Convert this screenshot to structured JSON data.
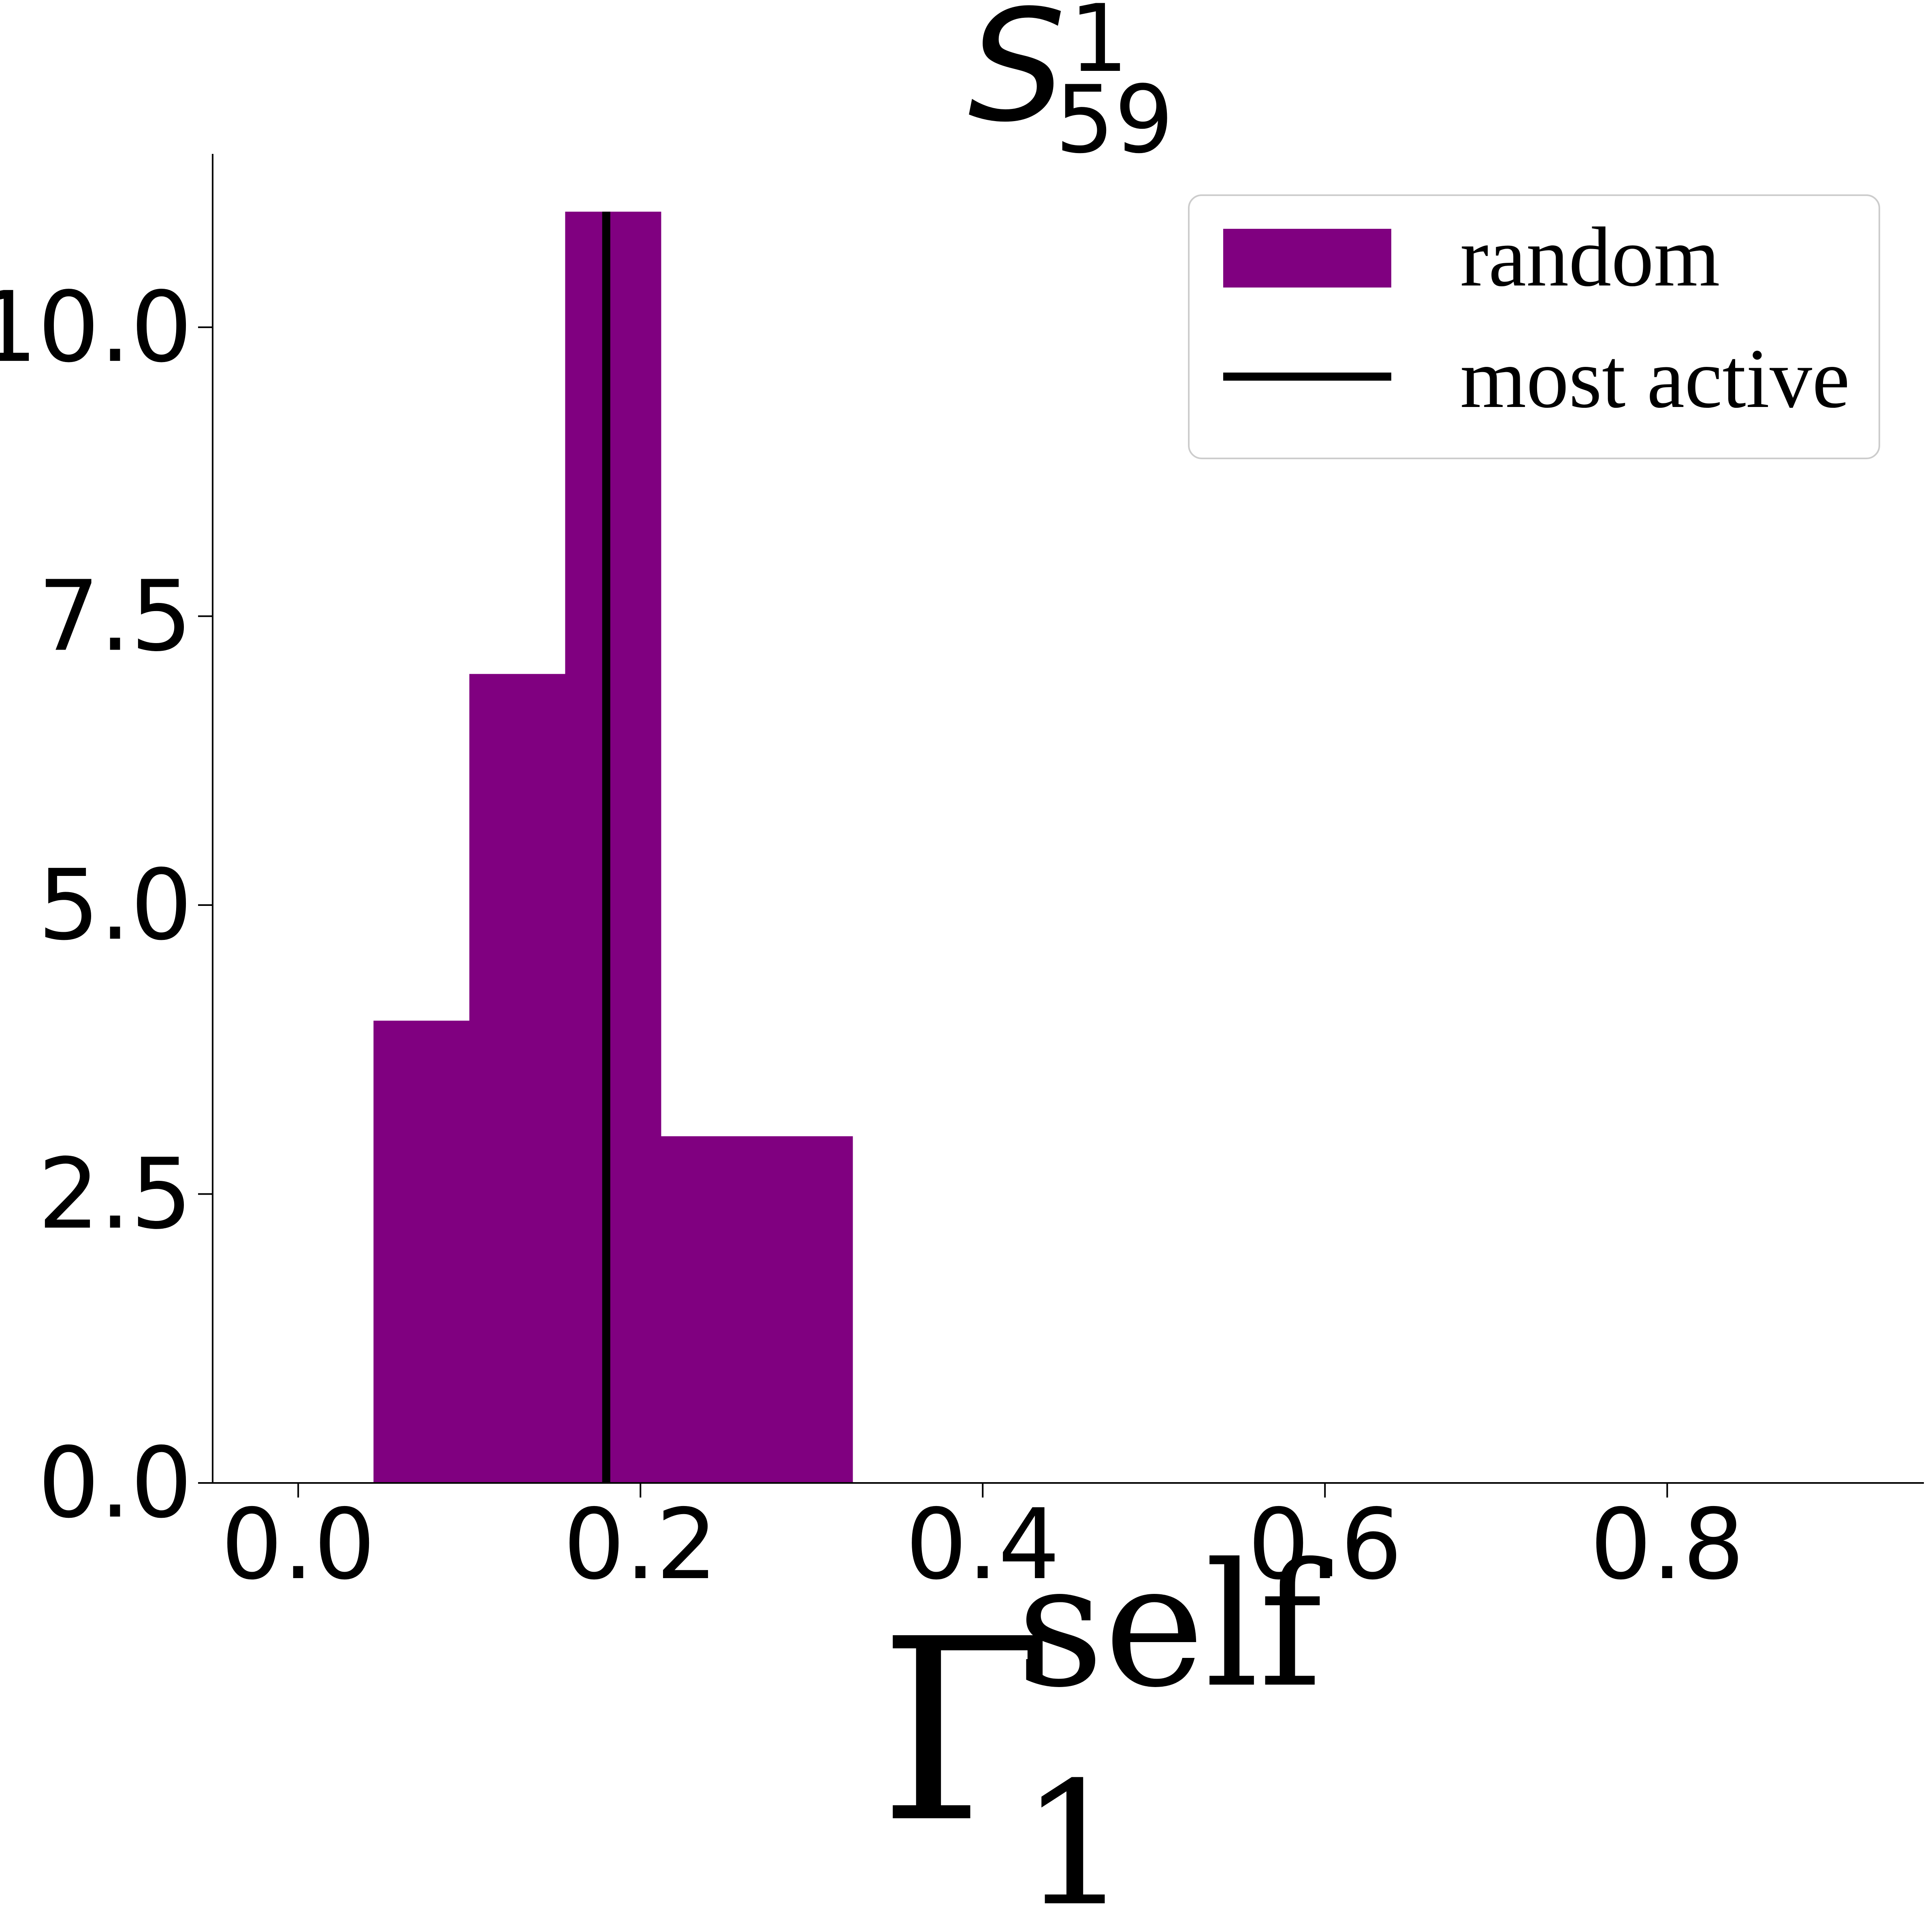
{
  "chart_data": {
    "type": "histogram",
    "title": {
      "base": "S",
      "superscript": "1",
      "subscript": "59"
    },
    "xlabel": {
      "base": "Γ",
      "superscript": "self",
      "subscript": "1"
    },
    "ylabel": "",
    "xlim": [
      -0.05,
      0.95
    ],
    "ylim": [
      0,
      11.5
    ],
    "xticks": [
      0.0,
      0.2,
      0.4,
      0.6,
      0.8
    ],
    "xtick_labels": [
      "0.0",
      "0.2",
      "0.4",
      "0.6",
      "0.8"
    ],
    "yticks": [
      0.0,
      2.5,
      5.0,
      7.5,
      10.0
    ],
    "ytick_labels": [
      "0.0",
      "2.5",
      "5.0",
      "7.5",
      "10.0"
    ],
    "bins": [
      {
        "x0": 0.044,
        "x1": 0.1,
        "count": 4
      },
      {
        "x0": 0.1,
        "x1": 0.156,
        "count": 7
      },
      {
        "x0": 0.156,
        "x1": 0.212,
        "count": 11
      },
      {
        "x0": 0.212,
        "x1": 0.268,
        "count": 3
      },
      {
        "x0": 0.268,
        "x1": 0.324,
        "count": 3
      }
    ],
    "vline": {
      "x": 0.18,
      "name": "most active"
    },
    "series": [
      {
        "name": "random",
        "color": "#800080",
        "kind": "histogram"
      },
      {
        "name": "most active",
        "color": "#000000",
        "kind": "vertical-line"
      }
    ],
    "legend": {
      "placement": "top-right",
      "entries": [
        "random",
        "most active"
      ]
    },
    "grid": false,
    "spines": [
      "left",
      "bottom"
    ]
  }
}
